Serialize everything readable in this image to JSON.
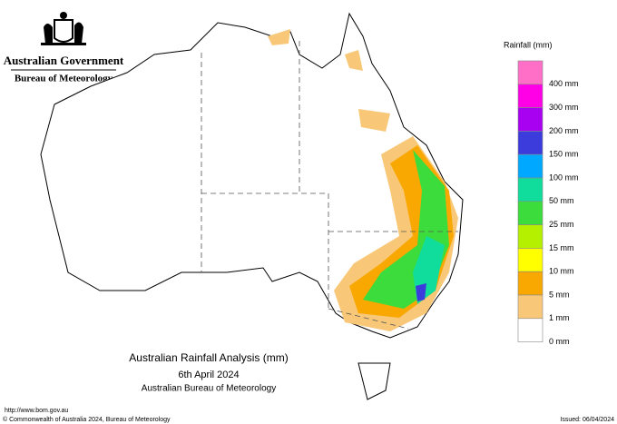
{
  "header": {
    "government": "Australian Government",
    "agency": "Bureau of Meteorology"
  },
  "legend": {
    "title": "Rainfall (mm)",
    "items": [
      {
        "color": "#ff6ec7",
        "label": "400 mm"
      },
      {
        "color": "#ff00e6",
        "label": "300 mm"
      },
      {
        "color": "#a800f0",
        "label": "200 mm"
      },
      {
        "color": "#3c3cdc",
        "label": "150 mm"
      },
      {
        "color": "#00a8ff",
        "label": "100 mm"
      },
      {
        "color": "#10dc9c",
        "label": "50 mm"
      },
      {
        "color": "#3cdc3c",
        "label": "25 mm"
      },
      {
        "color": "#b4f000",
        "label": "15 mm"
      },
      {
        "color": "#ffff00",
        "label": "10 mm"
      },
      {
        "color": "#f8a800",
        "label": "5 mm"
      },
      {
        "color": "#f8c878",
        "label": "1 mm"
      },
      {
        "color": "#ffffff",
        "label": "0 mm"
      }
    ]
  },
  "caption": {
    "title": "Australian Rainfall Analysis (mm)",
    "date": "6th April 2024",
    "agency": "Australian Bureau of Meteorology"
  },
  "footer": {
    "url": "http://www.bom.gov.au",
    "copyright": "© Commonwealth of Australia 2024, Bureau of Meteorology",
    "issued": "Issued: 06/04/2024"
  }
}
